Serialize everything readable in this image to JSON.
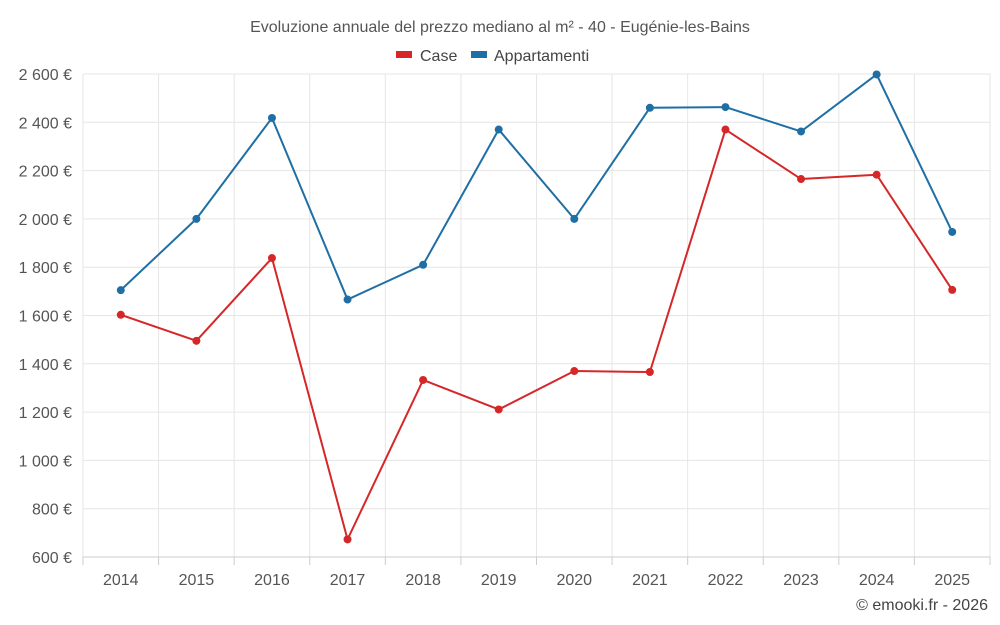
{
  "chart_data": {
    "type": "line",
    "title": "Evoluzione annuale del prezzo mediano al m² - 40 - Eugénie-les-Bains",
    "categories": [
      "2014",
      "2015",
      "2016",
      "2017",
      "2018",
      "2019",
      "2020",
      "2021",
      "2022",
      "2023",
      "2024",
      "2025"
    ],
    "ylim": [
      600,
      2600
    ],
    "yticks": [
      600,
      800,
      1000,
      1200,
      1400,
      1600,
      1800,
      2000,
      2200,
      2400,
      2600
    ],
    "ytick_labels": [
      "600 €",
      "800 €",
      "1 000 €",
      "1 200 €",
      "1 400 €",
      "1 600 €",
      "1 800 €",
      "2 000 €",
      "2 200 €",
      "2 400 €",
      "2 600 €"
    ],
    "grid": true,
    "legend_position": "top-center",
    "series": [
      {
        "name": "Case",
        "color": "#d62728",
        "values": [
          1603,
          1495,
          1838,
          673,
          1333,
          1211,
          1370,
          1366,
          2370,
          2165,
          2183,
          1706
        ]
      },
      {
        "name": "Appartamenti",
        "color": "#1f6fa5",
        "values": [
          1705,
          2000,
          2418,
          1666,
          1810,
          2370,
          2000,
          2460,
          2463,
          2362,
          2598,
          1946
        ]
      }
    ]
  },
  "credit": "© emooki.fr - 2026"
}
